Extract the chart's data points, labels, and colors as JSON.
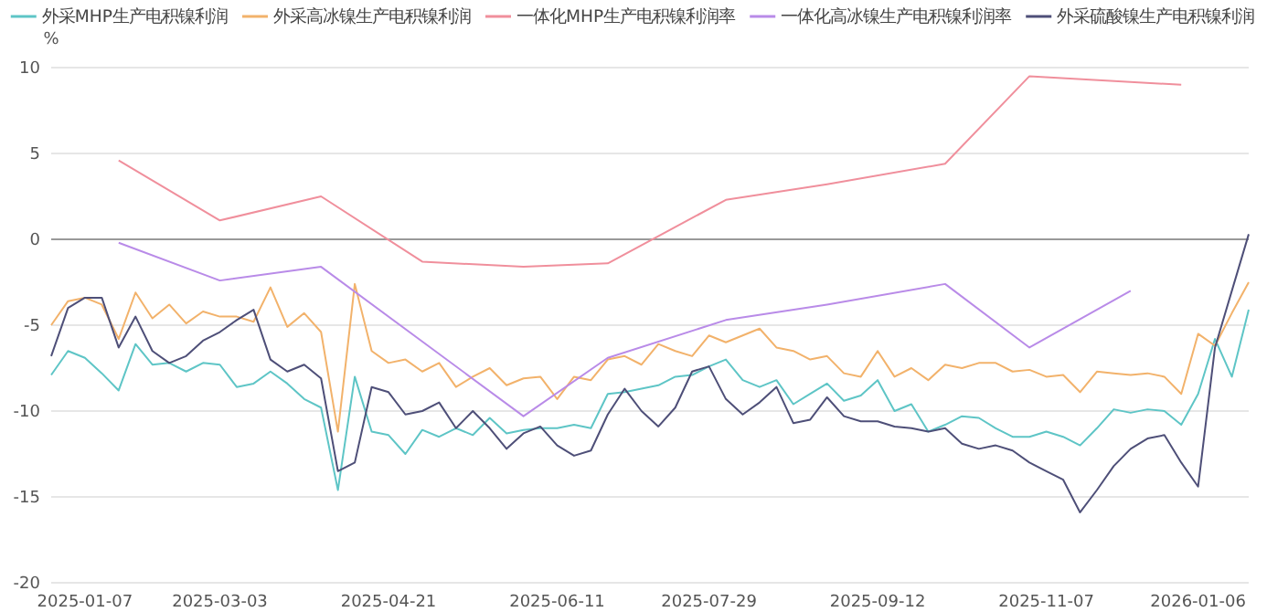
{
  "chart_data": {
    "type": "line",
    "ylabel": "%",
    "ylim": [
      -20,
      10
    ],
    "yticks": [
      -20,
      -15,
      -10,
      -5,
      0,
      5,
      10
    ],
    "grid": "y",
    "legend": "top",
    "marker": "none",
    "line_style": "solid",
    "categories": [
      null,
      null,
      "2025-01-07",
      null,
      null,
      null,
      null,
      null,
      null,
      null,
      "2025-03-03",
      null,
      null,
      null,
      null,
      null,
      null,
      null,
      null,
      null,
      "2025-04-21",
      null,
      null,
      null,
      null,
      null,
      null,
      null,
      null,
      null,
      "2025-06-11",
      null,
      null,
      null,
      null,
      null,
      null,
      null,
      null,
      "2025-07-29",
      null,
      null,
      null,
      null,
      null,
      null,
      null,
      null,
      null,
      "2025-09-12",
      null,
      null,
      null,
      null,
      null,
      null,
      null,
      null,
      null,
      "2025-11-07",
      null,
      null,
      null,
      null,
      null,
      null,
      null,
      null,
      "2026-01-06",
      null,
      null,
      null
    ],
    "series": [
      {
        "name": "外采MHP生产电积镍利润",
        "color": "#5ec5c6",
        "values": [
          -7.9,
          -6.5,
          -6.9,
          -7.8,
          -8.8,
          -6.1,
          -7.3,
          -7.2,
          -7.7,
          -7.2,
          -7.3,
          -8.6,
          -8.4,
          -7.7,
          -8.4,
          -9.3,
          -9.8,
          -14.6,
          -8.0,
          -11.2,
          -11.4,
          -12.5,
          -11.1,
          -11.5,
          -11.0,
          -11.4,
          -10.4,
          -11.3,
          -11.1,
          -11.0,
          -11.0,
          -10.8,
          -11.0,
          -9.0,
          -8.9,
          -8.7,
          -8.5,
          -8.0,
          -7.9,
          -7.4,
          -7.0,
          -8.2,
          -8.6,
          -8.2,
          -9.6,
          -9.0,
          -8.4,
          -9.4,
          -9.1,
          -8.2,
          -10.0,
          -9.6,
          -11.2,
          -10.8,
          -10.3,
          -10.4,
          -11.0,
          -11.5,
          -11.5,
          -11.2,
          -11.5,
          -12.0,
          -11.0,
          -9.9,
          -10.1,
          -9.9,
          -10.0,
          -10.8,
          -9.0,
          -5.8,
          -8.0,
          -4.1
        ]
      },
      {
        "name": "外采高冰镍生产电积镍利润",
        "color": "#f2b26b",
        "values": [
          -5.0,
          -3.6,
          -3.4,
          -3.8,
          -5.8,
          -3.1,
          -4.6,
          -3.8,
          -4.9,
          -4.2,
          -4.5,
          -4.5,
          -4.8,
          -2.8,
          -5.1,
          -4.3,
          -5.4,
          -11.2,
          -2.6,
          -6.5,
          -7.2,
          -7.0,
          -7.7,
          -7.2,
          -8.6,
          -8.0,
          -7.5,
          -8.5,
          -8.1,
          -8.0,
          -9.3,
          -8.0,
          -8.2,
          -7.0,
          -6.8,
          -7.3,
          -6.1,
          -6.5,
          -6.8,
          -5.6,
          -6.0,
          -5.6,
          -5.2,
          -6.3,
          -6.5,
          -7.0,
          -6.8,
          -7.8,
          -8.0,
          -6.5,
          -8.0,
          -7.5,
          -8.2,
          -7.3,
          -7.5,
          -7.2,
          -7.2,
          -7.7,
          -7.6,
          -8.0,
          -7.9,
          -8.9,
          -7.7,
          -7.8,
          -7.9,
          -7.8,
          -8.0,
          -9.0,
          -5.5,
          -6.2,
          -4.3,
          -2.5
        ]
      },
      {
        "name": "一体化MHP生产电积镍利润率",
        "color": "#f08f9c",
        "values": [
          null,
          null,
          null,
          null,
          4.6,
          null,
          null,
          null,
          null,
          null,
          1.1,
          null,
          null,
          null,
          null,
          null,
          2.5,
          null,
          null,
          null,
          null,
          null,
          -1.3,
          null,
          null,
          null,
          null,
          null,
          -1.6,
          null,
          null,
          null,
          null,
          -1.4,
          null,
          null,
          null,
          null,
          null,
          null,
          2.3,
          null,
          null,
          null,
          null,
          null,
          3.2,
          null,
          null,
          null,
          null,
          null,
          null,
          4.4,
          null,
          null,
          null,
          null,
          9.5,
          null,
          null,
          null,
          null,
          null,
          null,
          null,
          null,
          9.0,
          null,
          null,
          null,
          null
        ]
      },
      {
        "name": "一体化高冰镍生产电积镍利润率",
        "color": "#b98be8",
        "values": [
          null,
          null,
          null,
          null,
          -0.2,
          null,
          null,
          null,
          null,
          null,
          -2.4,
          null,
          null,
          null,
          null,
          null,
          -1.6,
          null,
          null,
          null,
          null,
          null,
          null,
          null,
          null,
          null,
          null,
          null,
          -10.3,
          null,
          null,
          null,
          null,
          -6.9,
          null,
          null,
          null,
          null,
          null,
          null,
          -4.7,
          null,
          null,
          null,
          null,
          null,
          -3.8,
          null,
          null,
          null,
          null,
          null,
          null,
          -2.6,
          null,
          null,
          null,
          null,
          -6.3,
          null,
          null,
          null,
          null,
          null,
          -3.0,
          null,
          null,
          null,
          null,
          null,
          null,
          null
        ]
      },
      {
        "name": "外采硫酸镍生产电积镍利润",
        "color": "#4e4f78",
        "values": [
          -6.8,
          -4.0,
          -3.4,
          -3.4,
          -6.3,
          -4.5,
          -6.5,
          -7.2,
          -6.8,
          -5.9,
          -5.4,
          -4.7,
          -4.1,
          -7.0,
          -7.7,
          -7.3,
          -8.1,
          -13.5,
          -13.0,
          -8.6,
          -8.9,
          -10.2,
          -10.0,
          -9.5,
          -11.0,
          -10.0,
          -11.0,
          -12.2,
          -11.3,
          -10.9,
          -12.0,
          -12.6,
          -12.3,
          -10.2,
          -8.7,
          -10.0,
          -10.9,
          -9.8,
          -7.7,
          -7.4,
          -9.3,
          -10.2,
          -9.5,
          -8.6,
          -10.7,
          -10.5,
          -9.2,
          -10.3,
          -10.6,
          -10.6,
          -10.9,
          -11.0,
          -11.2,
          -11.0,
          -11.9,
          -12.2,
          -12.0,
          -12.3,
          -13.0,
          -13.5,
          -14.0,
          -15.9,
          -14.6,
          -13.2,
          -12.2,
          -11.6,
          -11.4,
          -13.0,
          -14.4,
          -6.3,
          -3.0,
          0.3
        ]
      }
    ]
  }
}
